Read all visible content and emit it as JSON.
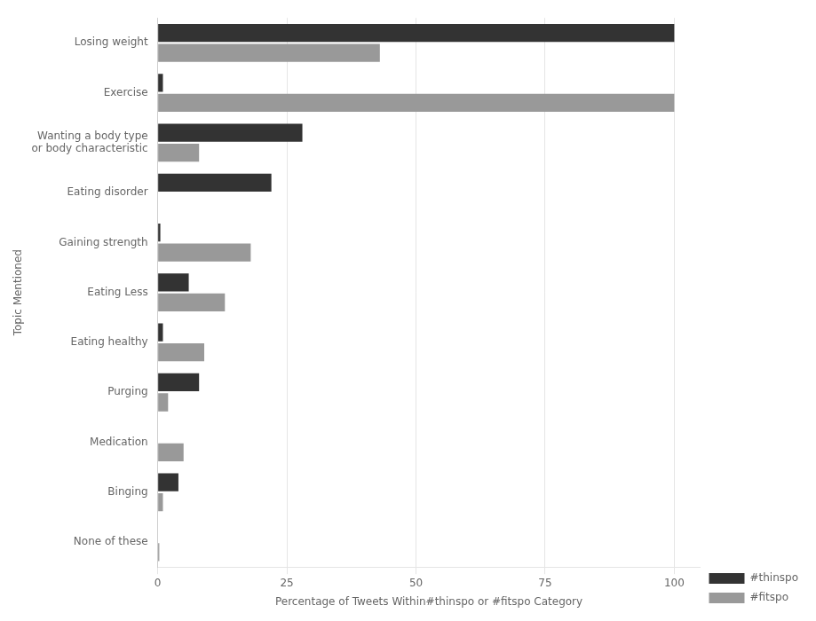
{
  "chart_data": {
    "type": "bar",
    "orientation": "horizontal",
    "categories": [
      "Losing weight",
      "Exercise",
      "Wanting a body type\nor body characteristic",
      "Eating disorder",
      "Gaining strength",
      "Eating Less",
      "Eating healthy",
      "Purging",
      "Medication",
      "Binging",
      "None of these"
    ],
    "series": [
      {
        "name": "#thinspo",
        "color": "#333333",
        "values": [
          100,
          1,
          28,
          22,
          0.5,
          6,
          1,
          8,
          0,
          4,
          0
        ]
      },
      {
        "name": "#fitspo",
        "color": "#999999",
        "values": [
          43,
          100,
          8,
          0,
          18,
          13,
          9,
          2,
          5,
          1,
          0.3
        ]
      }
    ],
    "xlabel": "Percentage of Tweets Within#thinspo or #fitspo Category",
    "ylabel": "Topic Mentioned",
    "xlim": [
      0,
      105
    ],
    "xticks": [
      0,
      25,
      50,
      75,
      100
    ],
    "grid": true,
    "legend": "lower right"
  }
}
